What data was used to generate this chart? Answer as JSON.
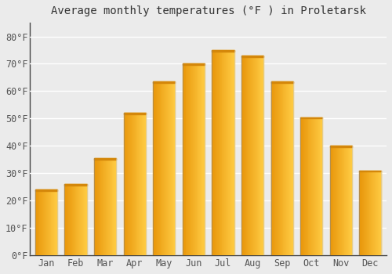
{
  "title": "Average monthly temperatures (°F ) in Proletarsk",
  "months": [
    "Jan",
    "Feb",
    "Mar",
    "Apr",
    "May",
    "Jun",
    "Jul",
    "Aug",
    "Sep",
    "Oct",
    "Nov",
    "Dec"
  ],
  "values": [
    24,
    26,
    35.5,
    52,
    63.5,
    70,
    75,
    73,
    63.5,
    50.5,
    40,
    31
  ],
  "bar_color_left": "#E8960A",
  "bar_color_right": "#FFCC44",
  "bar_color_top": "#D4870A",
  "ylim": [
    0,
    85
  ],
  "yticks": [
    0,
    10,
    20,
    30,
    40,
    50,
    60,
    70,
    80
  ],
  "ylabel_suffix": "°F",
  "background_color": "#ebebeb",
  "grid_color": "#ffffff",
  "title_fontsize": 10,
  "tick_fontsize": 8.5,
  "spine_color": "#444444"
}
